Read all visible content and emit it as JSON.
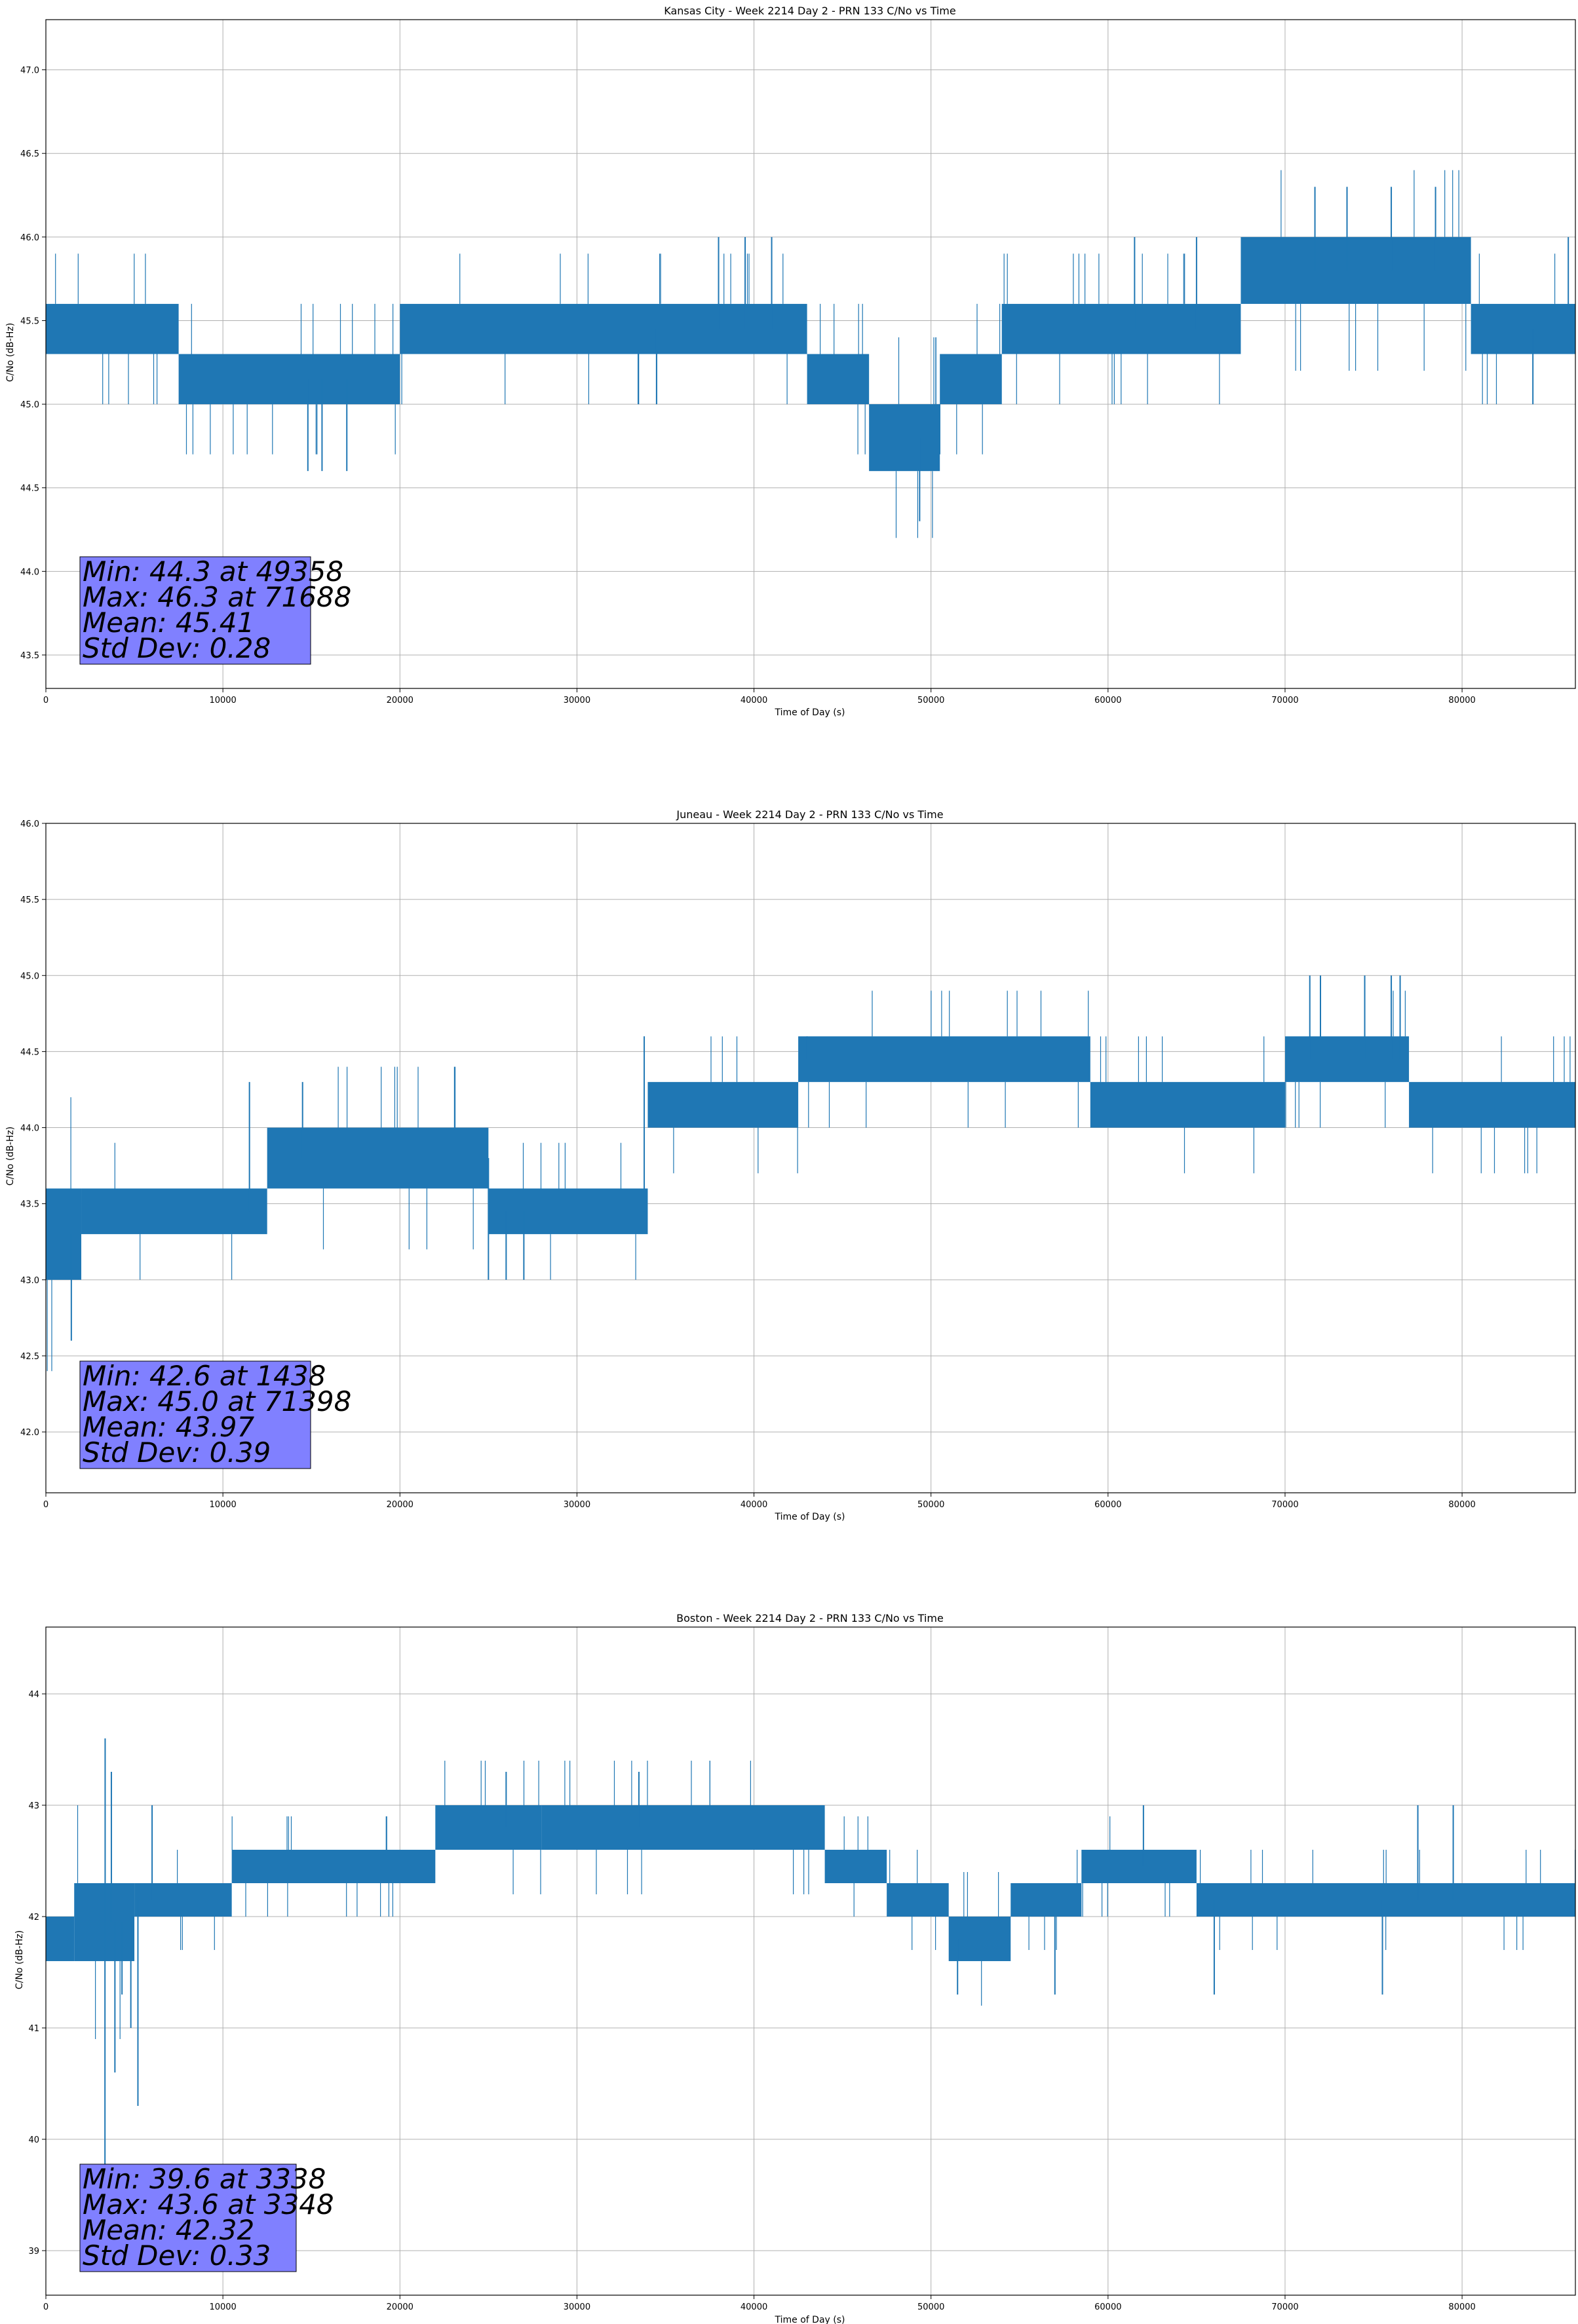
{
  "chart_data": [
    {
      "type": "line",
      "title": "Kansas City - Week 2214 Day 2 - PRN 133 C/No vs Time",
      "xlabel": "Time of Day (s)",
      "ylabel": "C/No (dB-Hz)",
      "xlim": [
        0,
        86400
      ],
      "ylim": [
        43.3,
        47.3
      ],
      "xticks": [
        0,
        10000,
        20000,
        30000,
        40000,
        50000,
        60000,
        70000,
        80000
      ],
      "xtick_labels": [
        "0",
        "10000",
        "20000",
        "30000",
        "40000",
        "50000",
        "60000",
        "70000",
        "80000"
      ],
      "yticks": [
        43.5,
        44.0,
        44.5,
        45.0,
        45.5,
        46.0,
        46.5,
        47.0
      ],
      "ytick_labels": [
        "43.5",
        "44.0",
        "44.5",
        "45.0",
        "45.5",
        "46.0",
        "46.5",
        "47.0"
      ],
      "grid": true,
      "line_color": "#1f77b4",
      "stats_box_color": "#8080ff",
      "stats_lines": [
        "Min: 44.3 at 49358",
        "Max: 46.3 at 71688",
        "Mean: 45.41",
        "Std Dev: 0.28"
      ],
      "series": [
        {
          "band_segments": [
            {
              "x": [
                0,
                7500
              ],
              "levels": [
                45.3,
                45.6
              ]
            },
            {
              "x": [
                7500,
                20000
              ],
              "levels": [
                45.0,
                45.3
              ]
            },
            {
              "x": [
                20000,
                43000
              ],
              "levels": [
                45.3,
                45.6
              ]
            },
            {
              "x": [
                43000,
                46500
              ],
              "levels": [
                45.0,
                45.3
              ]
            },
            {
              "x": [
                46500,
                50500
              ],
              "levels": [
                44.6,
                45.0
              ]
            },
            {
              "x": [
                50500,
                54000
              ],
              "levels": [
                45.0,
                45.3
              ]
            },
            {
              "x": [
                54000,
                67500
              ],
              "levels": [
                45.3,
                45.6
              ]
            },
            {
              "x": [
                67500,
                80500
              ],
              "levels": [
                45.6,
                46.0
              ]
            },
            {
              "x": [
                80500,
                86400
              ],
              "levels": [
                45.3,
                45.6
              ]
            }
          ],
          "spikes": [
            [
              38000,
              46.0
            ],
            [
              39500,
              46.0
            ],
            [
              41000,
              46.0
            ],
            [
              34500,
              45.0
            ],
            [
              14800,
              44.6
            ],
            [
              15600,
              44.6
            ],
            [
              17000,
              44.6
            ],
            [
              49358,
              44.3
            ],
            [
              71688,
              46.3
            ],
            [
              73500,
              46.3
            ],
            [
              76000,
              46.3
            ],
            [
              78500,
              46.3
            ],
            [
              61500,
              46.0
            ],
            [
              65000,
              46.0
            ],
            [
              84000,
              45.0
            ],
            [
              86000,
              46.0
            ]
          ]
        }
      ]
    },
    {
      "type": "line",
      "title": "Juneau - Week 2214 Day 2 - PRN 133 C/No vs Time",
      "xlabel": "Time of Day (s)",
      "ylabel": "C/No (dB-Hz)",
      "xlim": [
        0,
        86400
      ],
      "ylim": [
        41.6,
        46.0
      ],
      "xticks": [
        0,
        10000,
        20000,
        30000,
        40000,
        50000,
        60000,
        70000,
        80000
      ],
      "xtick_labels": [
        "0",
        "10000",
        "20000",
        "30000",
        "40000",
        "50000",
        "60000",
        "70000",
        "80000"
      ],
      "yticks": [
        42.0,
        42.5,
        43.0,
        43.5,
        44.0,
        44.5,
        45.0,
        45.5,
        46.0
      ],
      "ytick_labels": [
        "42.0",
        "42.5",
        "43.0",
        "43.5",
        "44.0",
        "44.5",
        "45.0",
        "45.5",
        "46.0"
      ],
      "grid": true,
      "line_color": "#1f77b4",
      "stats_box_color": "#8080ff",
      "stats_lines": [
        "Min: 42.6 at 1438",
        "Max: 45.0 at 71398",
        "Mean: 43.97",
        "Std Dev: 0.39"
      ],
      "series": [
        {
          "band_segments": [
            {
              "x": [
                0,
                2000
              ],
              "levels": [
                43.0,
                43.6
              ]
            },
            {
              "x": [
                2000,
                12500
              ],
              "levels": [
                43.3,
                43.6
              ]
            },
            {
              "x": [
                12500,
                25000
              ],
              "levels": [
                43.6,
                44.0
              ]
            },
            {
              "x": [
                25000,
                34000
              ],
              "levels": [
                43.3,
                43.6
              ]
            },
            {
              "x": [
                34000,
                42500
              ],
              "levels": [
                44.0,
                44.3
              ]
            },
            {
              "x": [
                42500,
                59000
              ],
              "levels": [
                44.3,
                44.6
              ]
            },
            {
              "x": [
                59000,
                70000
              ],
              "levels": [
                44.0,
                44.3
              ]
            },
            {
              "x": [
                70000,
                77000
              ],
              "levels": [
                44.3,
                44.6
              ]
            },
            {
              "x": [
                77000,
                86400
              ],
              "levels": [
                44.0,
                44.3
              ]
            }
          ],
          "spikes": [
            [
              1438,
              42.6
            ],
            [
              71398,
              45.0
            ],
            [
              72000,
              45.0
            ],
            [
              74500,
              45.0
            ],
            [
              76000,
              45.0
            ],
            [
              76500,
              45.0
            ],
            [
              33800,
              44.6
            ],
            [
              11500,
              44.3
            ],
            [
              14500,
              44.3
            ],
            [
              25000,
              43.0
            ],
            [
              26000,
              43.0
            ],
            [
              27000,
              43.0
            ],
            [
              43000,
              44.6
            ]
          ]
        }
      ]
    },
    {
      "type": "line",
      "title": "Boston - Week 2214 Day 2 - PRN 133 C/No vs Time",
      "xlabel": "Time of Day (s)",
      "ylabel": "C/No (dB-Hz)",
      "xlim": [
        0,
        86400
      ],
      "ylim": [
        38.6,
        44.6
      ],
      "xticks": [
        0,
        10000,
        20000,
        30000,
        40000,
        50000,
        60000,
        70000,
        80000
      ],
      "xtick_labels": [
        "0",
        "10000",
        "20000",
        "30000",
        "40000",
        "50000",
        "60000",
        "70000",
        "80000"
      ],
      "yticks": [
        39,
        40,
        41,
        42,
        43,
        44
      ],
      "ytick_labels": [
        "39",
        "40",
        "41",
        "42",
        "43",
        "44"
      ],
      "grid": true,
      "line_color": "#1f77b4",
      "stats_box_color": "#8080ff",
      "stats_lines": [
        "Min: 39.6 at 3338",
        "Max: 43.6 at 3348",
        "Mean: 42.32",
        "Std Dev: 0.33"
      ],
      "series": [
        {
          "band_segments": [
            {
              "x": [
                0,
                1600
              ],
              "levels": [
                41.6,
                42.0
              ]
            },
            {
              "x": [
                1600,
                5000
              ],
              "levels": [
                41.6,
                42.3
              ]
            },
            {
              "x": [
                5000,
                10500
              ],
              "levels": [
                42.0,
                42.3
              ]
            },
            {
              "x": [
                10500,
                22000
              ],
              "levels": [
                42.3,
                42.6
              ]
            },
            {
              "x": [
                22000,
                28000
              ],
              "levels": [
                42.6,
                43.0
              ]
            },
            {
              "x": [
                28000,
                44000
              ],
              "levels": [
                42.6,
                43.0
              ]
            },
            {
              "x": [
                44000,
                47500
              ],
              "levels": [
                42.3,
                42.6
              ]
            },
            {
              "x": [
                47500,
                51000
              ],
              "levels": [
                42.0,
                42.3
              ]
            },
            {
              "x": [
                51000,
                54500
              ],
              "levels": [
                41.6,
                42.0
              ]
            },
            {
              "x": [
                54500,
                58500
              ],
              "levels": [
                42.0,
                42.3
              ]
            },
            {
              "x": [
                58500,
                65000
              ],
              "levels": [
                42.3,
                42.6
              ]
            },
            {
              "x": [
                65000,
                86400
              ],
              "levels": [
                42.0,
                42.3
              ]
            }
          ],
          "spikes": [
            [
              3338,
              39.6
            ],
            [
              3348,
              43.6
            ],
            [
              3700,
              43.3
            ],
            [
              3900,
              40.6
            ],
            [
              5200,
              40.3
            ],
            [
              4300,
              41.3
            ],
            [
              4800,
              41.0
            ],
            [
              6000,
              43.0
            ],
            [
              26000,
              43.3
            ],
            [
              33500,
              43.3
            ],
            [
              51500,
              41.3
            ],
            [
              57000,
              41.3
            ],
            [
              62000,
              43.0
            ],
            [
              66000,
              41.3
            ],
            [
              75500,
              41.3
            ],
            [
              77500,
              43.0
            ],
            [
              79500,
              43.0
            ]
          ]
        }
      ]
    }
  ]
}
